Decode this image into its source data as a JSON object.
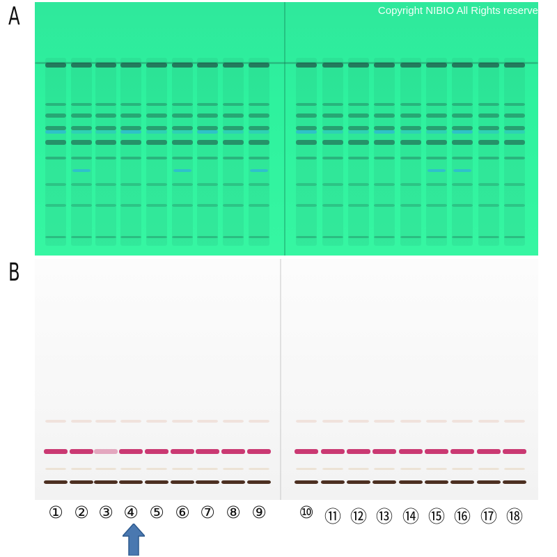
{
  "figure": {
    "panel_a_label": "A",
    "panel_b_label": "B",
    "copyright": "Copyright NIBIO All Rights reserve",
    "lane_labels": [
      "①",
      "②",
      "③",
      "④",
      "⑤",
      "⑥",
      "⑦",
      "⑧",
      "⑨",
      "⑩",
      "⑪",
      "⑫",
      "⑬",
      "⑭",
      "⑮",
      "⑯",
      "⑰",
      "⑱"
    ],
    "highlighted_lane": "④",
    "colors": {
      "plate_a_background": "#2ef29e",
      "plate_a_band": "#1f5a4a",
      "plate_a_blue_band": "#2fb6d8",
      "plate_b_background": "#f7f7f7",
      "plate_b_magenta_band": "#c2185b",
      "plate_b_dark_band": "#3a1a0a",
      "arrow": "#4a78b0"
    },
    "icons": {
      "arrow": "up-arrow-icon"
    }
  }
}
